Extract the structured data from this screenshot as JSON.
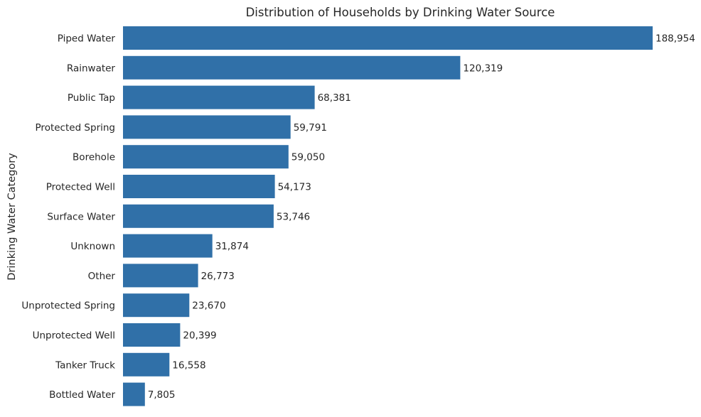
{
  "chart_data": {
    "type": "bar",
    "orientation": "horizontal",
    "title": "Distribution of Households by Drinking Water Source",
    "xlabel": "",
    "ylabel": "Drinking Water Category",
    "categories": [
      "Piped Water",
      "Rainwater",
      "Public Tap",
      "Protected Spring",
      "Borehole",
      "Protected Well",
      "Surface Water",
      "Unknown",
      "Other",
      "Unprotected Spring",
      "Unprotected Well",
      "Tanker Truck",
      "Bottled Water"
    ],
    "values": [
      188954,
      120319,
      68381,
      59791,
      59050,
      54173,
      53746,
      31874,
      26773,
      23670,
      20399,
      16558,
      7805
    ],
    "value_labels": [
      "188,954",
      "120,319",
      "68,381",
      "59,791",
      "59,050",
      "54,173",
      "53,746",
      "31,874",
      "26,773",
      "23,670",
      "20,399",
      "16,558",
      "7,805"
    ],
    "xlim": [
      0,
      188954
    ],
    "grid": false,
    "legend": "none",
    "bar_color": "#3070a8"
  }
}
